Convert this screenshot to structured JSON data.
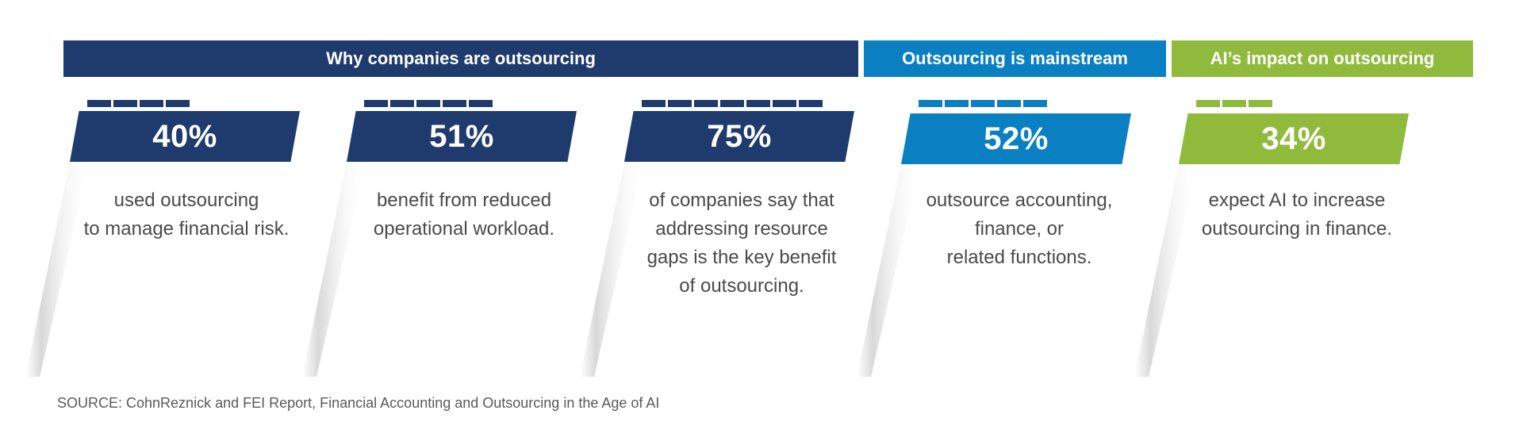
{
  "colors": {
    "navy": "#1f3b6e",
    "blue": "#0a7fc2",
    "green": "#8fba3c"
  },
  "headers": [
    {
      "label": "Why companies are outsourcing",
      "color": "#1f3b6e"
    },
    {
      "label": "Outsourcing is mainstream",
      "color": "#0a7fc2"
    },
    {
      "label": "AI’s impact on outsourcing",
      "color": "#8fba3c"
    }
  ],
  "cards": [
    {
      "stat": "40%",
      "ticks": 4,
      "color": "#1f3b6e",
      "lines": [
        "used outsourcing",
        "to manage financial risk."
      ]
    },
    {
      "stat": "51%",
      "ticks": 5,
      "color": "#1f3b6e",
      "lines": [
        "benefit from reduced",
        "operational workload."
      ]
    },
    {
      "stat": "75%",
      "ticks": 7,
      "color": "#1f3b6e",
      "lines": [
        "of companies say that",
        "addressing resource",
        "gaps is the key benefit",
        "of outsourcing."
      ]
    },
    {
      "stat": "52%",
      "ticks": 5,
      "color": "#0a7fc2",
      "lines": [
        "outsource accounting,",
        "finance, or",
        "related functions."
      ]
    },
    {
      "stat": "34%",
      "ticks": 3,
      "color": "#8fba3c",
      "lines": [
        "expect AI to increase",
        "outsourcing in finance."
      ]
    }
  ],
  "source": "SOURCE: CohnReznick and FEI Report, Financial Accounting and Outsourcing in the Age of AI"
}
